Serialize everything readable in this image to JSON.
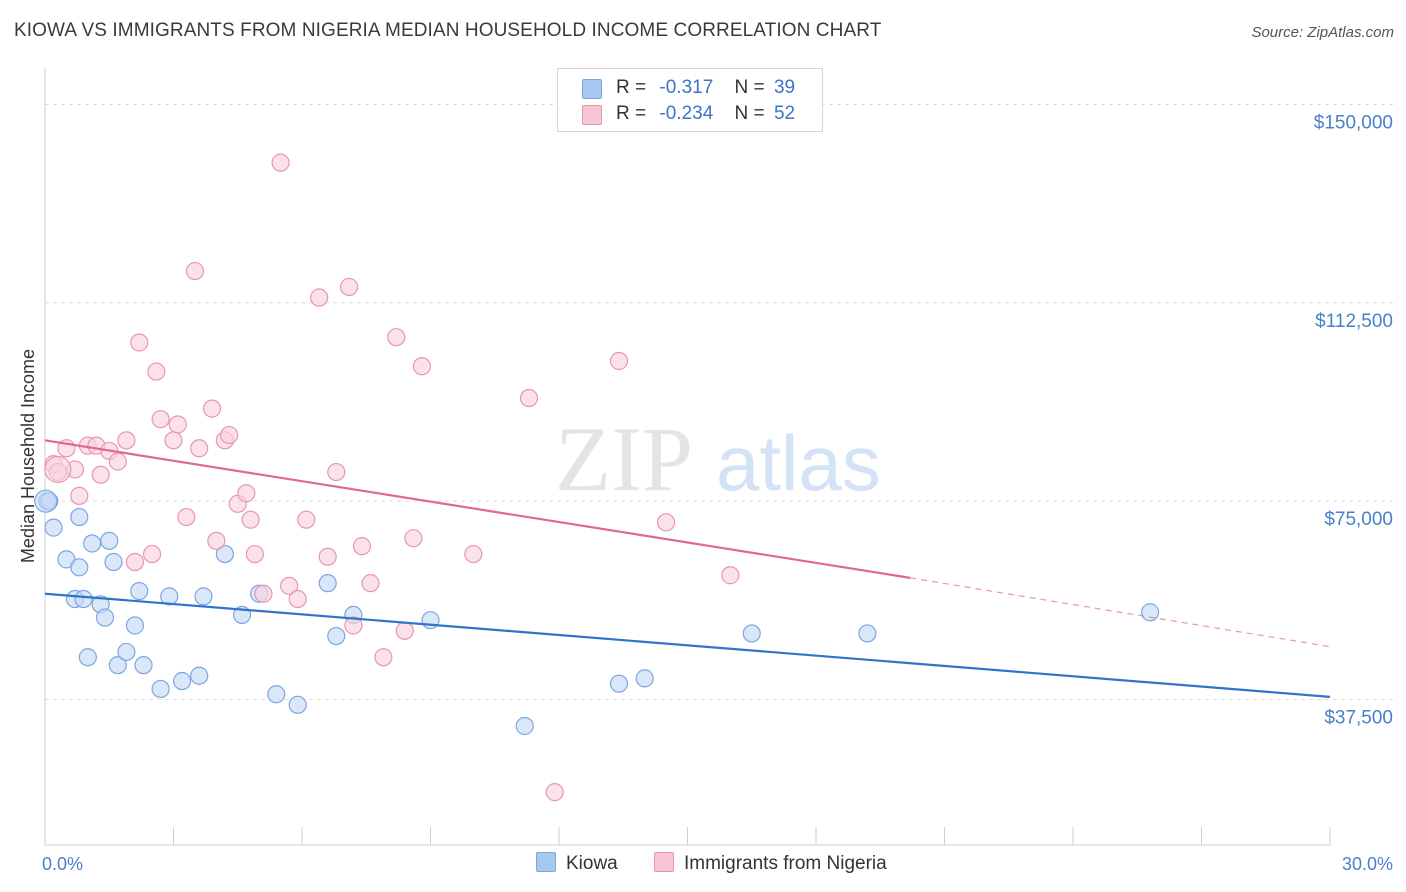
{
  "title": "KIOWA VS IMMIGRANTS FROM NIGERIA MEDIAN HOUSEHOLD INCOME CORRELATION CHART",
  "source": "Source: ZipAtlas.com",
  "watermark": {
    "zip": "ZIP",
    "atlas": "atlas"
  },
  "legend": {
    "rows": [
      {
        "r_label": "R =",
        "r_value": "-0.317",
        "n_label": "N =",
        "n_value": "39",
        "color": "#a9c8f0",
        "border": "#7ba7e0"
      },
      {
        "r_label": "R =",
        "r_value": "-0.234",
        "n_label": "N =",
        "n_value": "52",
        "color": "#f7c5d4",
        "border": "#e896b0"
      }
    ]
  },
  "bottom_legend": [
    {
      "label": "Kiowa",
      "color": "#a9c8f0",
      "border": "#7ba7e0"
    },
    {
      "label": "Immigrants from Nigeria",
      "color": "#f7c5d4",
      "border": "#e896b0"
    }
  ],
  "chart_data": {
    "type": "scatter",
    "ylabel": "Median Household Income",
    "xlim": [
      0,
      30
    ],
    "ylim": [
      10000,
      155000
    ],
    "x_tick_labels": [
      "0.0%",
      "30.0%"
    ],
    "y_ticks": [
      37500,
      75000,
      112500,
      150000
    ],
    "y_tick_labels": [
      "$37,500",
      "$75,000",
      "$112,500",
      "$150,000"
    ],
    "grid": true,
    "series": [
      {
        "name": "Kiowa",
        "color": "#7ba7e0",
        "fill": "#c5daf5",
        "line_color": "#2f74c9",
        "trend": {
          "x": [
            0,
            30
          ],
          "y": [
            57500,
            38000
          ]
        },
        "points": [
          [
            0.05,
            75000
          ],
          [
            0.2,
            70000
          ],
          [
            0.5,
            64000
          ],
          [
            0.7,
            56500
          ],
          [
            0.8,
            72000
          ],
          [
            0.8,
            62500
          ],
          [
            0.9,
            56500
          ],
          [
            1.0,
            45500
          ],
          [
            1.1,
            67000
          ],
          [
            1.3,
            55500
          ],
          [
            1.4,
            53000
          ],
          [
            1.5,
            67500
          ],
          [
            1.6,
            63500
          ],
          [
            1.7,
            44000
          ],
          [
            1.9,
            46500
          ],
          [
            2.1,
            51500
          ],
          [
            2.2,
            58000
          ],
          [
            2.3,
            44000
          ],
          [
            2.7,
            39500
          ],
          [
            2.9,
            57000
          ],
          [
            3.2,
            41000
          ],
          [
            3.6,
            42000
          ],
          [
            3.7,
            57000
          ],
          [
            4.2,
            65000
          ],
          [
            4.6,
            53500
          ],
          [
            5.0,
            57500
          ],
          [
            5.4,
            38500
          ],
          [
            5.9,
            36500
          ],
          [
            6.6,
            59500
          ],
          [
            6.8,
            49500
          ],
          [
            7.2,
            53500
          ],
          [
            9.0,
            52500
          ],
          [
            11.2,
            32500
          ],
          [
            13.4,
            40500
          ],
          [
            14.0,
            41500
          ],
          [
            16.5,
            50000
          ],
          [
            19.2,
            50000
          ],
          [
            25.8,
            54000
          ],
          [
            0.1,
            75000
          ]
        ]
      },
      {
        "name": "Immigrants from Nigeria",
        "color": "#e896b0",
        "fill": "#f9d3df",
        "line_color": "#e0698f",
        "trend": {
          "x": [
            0,
            20.2
          ],
          "y": [
            86500,
            60500
          ]
        },
        "trend_dashed": {
          "x": [
            20.2,
            30
          ],
          "y": [
            60500,
            47500
          ]
        },
        "points": [
          [
            0.2,
            82000
          ],
          [
            0.3,
            80500
          ],
          [
            0.5,
            85000
          ],
          [
            0.7,
            81000
          ],
          [
            0.8,
            76000
          ],
          [
            1.0,
            85500
          ],
          [
            1.2,
            85500
          ],
          [
            1.3,
            80000
          ],
          [
            1.5,
            84500
          ],
          [
            1.7,
            82500
          ],
          [
            1.9,
            86500
          ],
          [
            2.1,
            63500
          ],
          [
            2.2,
            105000
          ],
          [
            2.5,
            65000
          ],
          [
            2.6,
            99500
          ],
          [
            2.7,
            90500
          ],
          [
            3.0,
            86500
          ],
          [
            3.1,
            89500
          ],
          [
            3.3,
            72000
          ],
          [
            3.5,
            118500
          ],
          [
            3.6,
            85000
          ],
          [
            3.9,
            92500
          ],
          [
            4.0,
            67500
          ],
          [
            4.2,
            86500
          ],
          [
            4.3,
            87500
          ],
          [
            4.5,
            74500
          ],
          [
            4.7,
            76500
          ],
          [
            4.8,
            71500
          ],
          [
            4.9,
            65000
          ],
          [
            5.1,
            57500
          ],
          [
            5.5,
            139000
          ],
          [
            5.7,
            59000
          ],
          [
            5.9,
            56500
          ],
          [
            6.1,
            71500
          ],
          [
            6.4,
            113500
          ],
          [
            6.6,
            64500
          ],
          [
            6.8,
            80500
          ],
          [
            7.1,
            115500
          ],
          [
            7.2,
            51500
          ],
          [
            7.4,
            66500
          ],
          [
            7.6,
            59500
          ],
          [
            7.9,
            45500
          ],
          [
            8.2,
            106000
          ],
          [
            8.4,
            50500
          ],
          [
            8.6,
            68000
          ],
          [
            8.8,
            100500
          ],
          [
            10.0,
            65000
          ],
          [
            11.3,
            94500
          ],
          [
            11.9,
            20000
          ],
          [
            13.4,
            101500
          ],
          [
            14.5,
            71000
          ],
          [
            16.0,
            61000
          ]
        ]
      }
    ]
  }
}
